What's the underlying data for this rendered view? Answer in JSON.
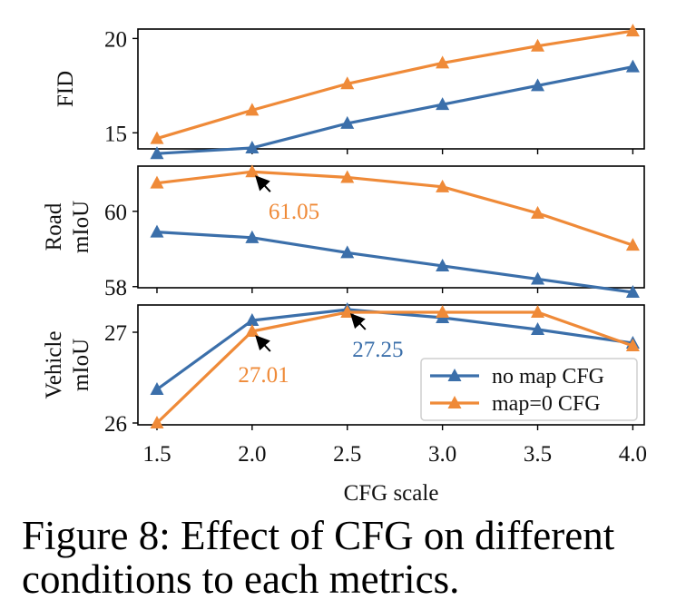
{
  "chart_data": {
    "type": "line",
    "x": [
      1.5,
      2.0,
      2.5,
      3.0,
      3.5,
      4.0
    ],
    "xlabel": "CFG scale",
    "xticks": [
      "1.5",
      "2.0",
      "2.5",
      "3.0",
      "3.5",
      "4.0"
    ],
    "xlim": [
      1.4,
      4.06
    ],
    "colors": {
      "no_map": "#3b6faa",
      "map0": "#ef8a38"
    },
    "legend": {
      "placement": "lower-right",
      "panel": 2,
      "entries": [
        {
          "label": "no map CFG",
          "color": "#3b6faa"
        },
        {
          "label": "map=0 CFG",
          "color": "#ef8a38"
        }
      ]
    },
    "panels": [
      {
        "ylabel": [
          "FID"
        ],
        "ylim": [
          14.15,
          20.5
        ],
        "yticks": [
          {
            "v": 15,
            "t": "15"
          },
          {
            "v": 20,
            "t": "20"
          }
        ],
        "series": [
          {
            "values": [
              13.9,
              14.2,
              15.5,
              16.5,
              17.5,
              18.5
            ],
            "color": "#3b6faa"
          },
          {
            "values": [
              14.7,
              16.2,
              17.6,
              18.7,
              19.6,
              20.4
            ],
            "color": "#ef8a38"
          }
        ],
        "annotations": []
      },
      {
        "ylabel": [
          "Road",
          "mIoU"
        ],
        "ylim": [
          57.97,
          61.2
        ],
        "yticks": [
          {
            "v": 58,
            "t": "58"
          },
          {
            "v": 60,
            "t": "60"
          }
        ],
        "series": [
          {
            "values": [
              59.45,
              59.3,
              58.9,
              58.55,
              58.2,
              57.85
            ],
            "color": "#3b6faa"
          },
          {
            "values": [
              60.75,
              61.05,
              60.9,
              60.65,
              59.95,
              59.1
            ],
            "color": "#ef8a38"
          }
        ],
        "annotations": [
          {
            "text": "61.05",
            "color": "#ef8a38",
            "x": 2.0,
            "y": 61.05,
            "tx": 2.22,
            "ty": 59.8
          }
        ]
      },
      {
        "ylabel": [
          "Vehicle",
          "mIoU"
        ],
        "ylim": [
          25.98,
          27.3
        ],
        "yticks": [
          {
            "v": 26,
            "t": "26"
          },
          {
            "v": 27,
            "t": "27"
          }
        ],
        "series": [
          {
            "values": [
              26.37,
              27.13,
              27.25,
              27.16,
              27.03,
              26.88
            ],
            "color": "#3b6faa"
          },
          {
            "values": [
              26.0,
              27.01,
              27.22,
              27.22,
              27.22,
              26.85
            ],
            "color": "#ef8a38"
          }
        ],
        "annotations": [
          {
            "text": "27.25",
            "color": "#3b6faa",
            "x": 2.5,
            "y": 27.25,
            "tx": 2.66,
            "ty": 26.73
          },
          {
            "text": "27.01",
            "color": "#ef8a38",
            "x": 2.0,
            "y": 27.01,
            "tx": 2.06,
            "ty": 26.45
          }
        ]
      }
    ]
  },
  "caption": {
    "line1": "Figure 8: Effect of CFG on different",
    "line2": "conditions to each metrics."
  }
}
